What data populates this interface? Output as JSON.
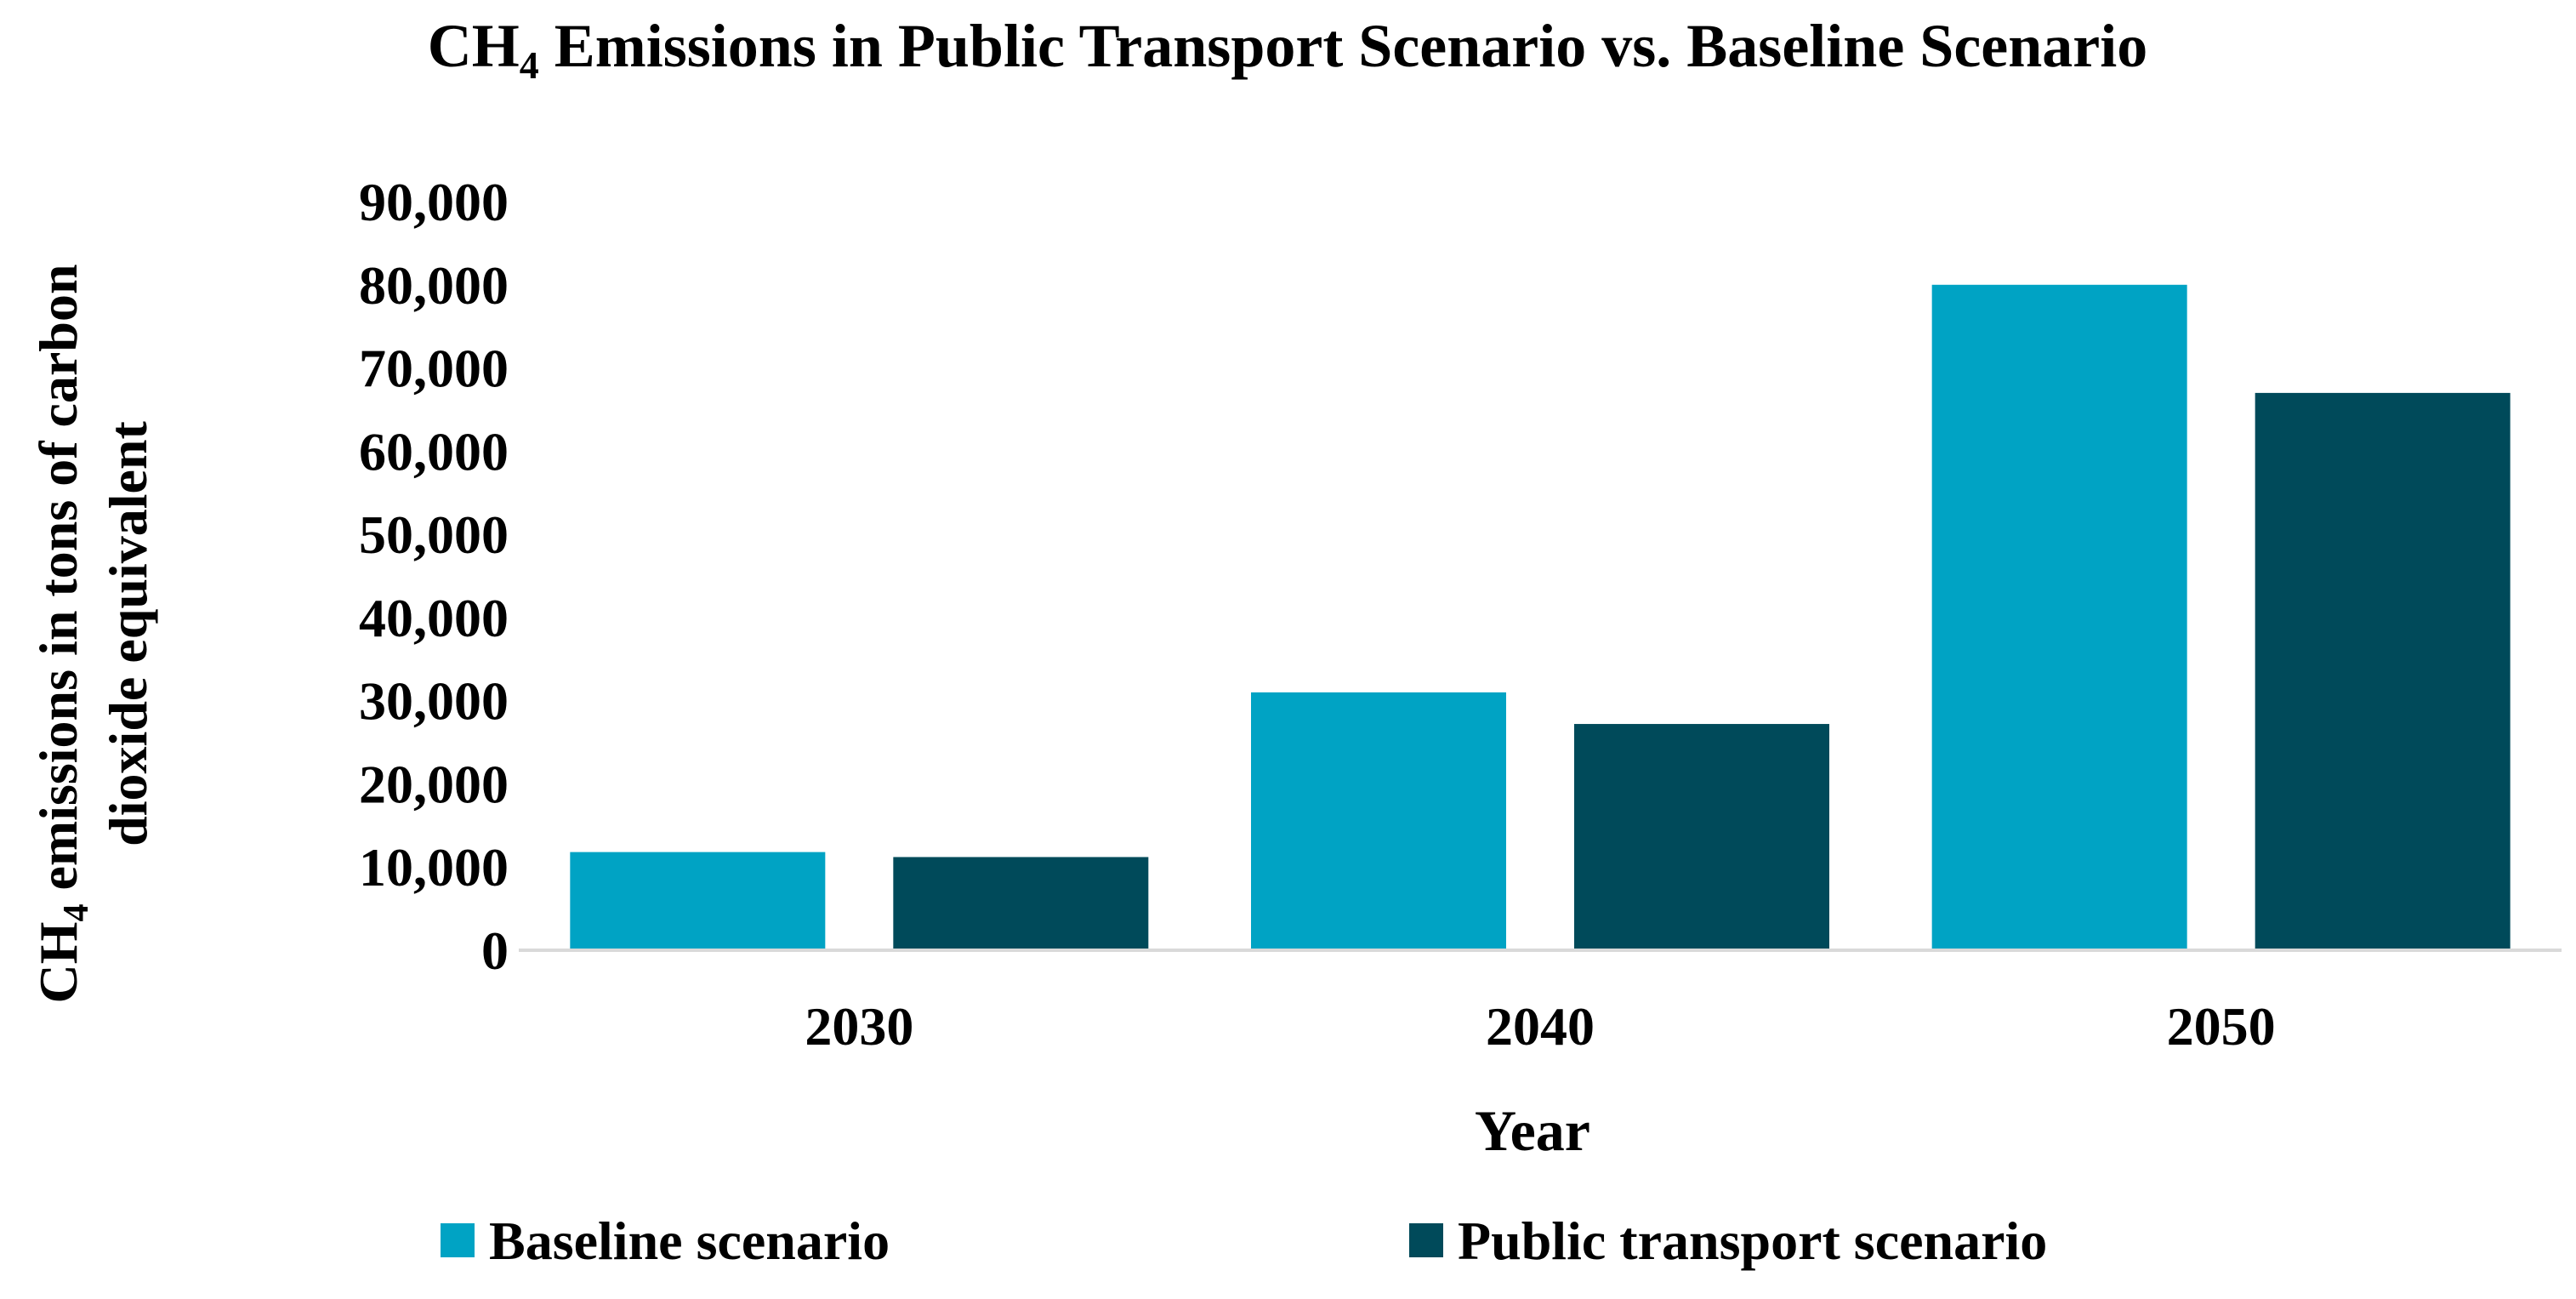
{
  "chart_data": {
    "type": "bar",
    "title": {
      "prefix": "CH",
      "subscript": "4",
      "suffix": " Emissions in Public Transport Scenario vs. Baseline Scenario"
    },
    "xlabel": "Year",
    "ylabel": {
      "line1_prefix": "CH",
      "line1_subscript": "4",
      "line1_suffix": " emissions in tons of carbon",
      "line2": "dioxide equivalent"
    },
    "categories": [
      "2030",
      "2040",
      "2050"
    ],
    "series": [
      {
        "name": "Baseline scenario",
        "color": "#00A3C4",
        "values": [
          11800,
          31000,
          80000
        ]
      },
      {
        "name": "Public transport scenario",
        "color": "#004A5A",
        "values": [
          11200,
          27200,
          67000
        ]
      }
    ],
    "ylim": [
      0,
      90000
    ],
    "yticks": [
      0,
      10000,
      20000,
      30000,
      40000,
      50000,
      60000,
      70000,
      80000,
      90000
    ],
    "ytick_labels": [
      "0",
      "10,000",
      "20,000",
      "30,000",
      "40,000",
      "50,000",
      "60,000",
      "70,000",
      "80,000",
      "90,000"
    ],
    "grid": false,
    "legend_position": "bottom"
  }
}
